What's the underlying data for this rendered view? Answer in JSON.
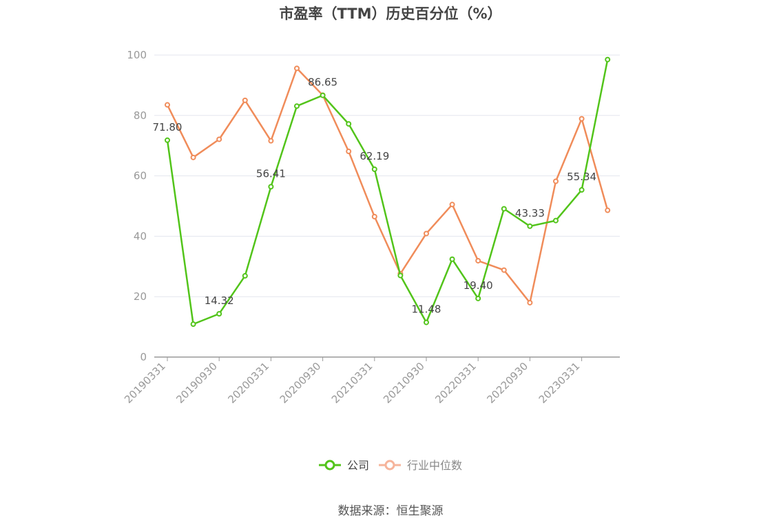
{
  "chart_data": {
    "type": "line",
    "title": "市盈率（TTM）历史百分位（%）",
    "source": "数据来源：恒生聚源",
    "ylim": [
      0,
      100
    ],
    "yticks": [
      0,
      20,
      40,
      60,
      80,
      100
    ],
    "grid": true,
    "legend_position": "bottom",
    "x": [
      "20190331",
      "20190630",
      "20190930",
      "20191231",
      "20200331",
      "20200630",
      "20200930",
      "20201231",
      "20210331",
      "20210630",
      "20210930",
      "20211231",
      "20220331",
      "20220630",
      "20220930",
      "20221231",
      "20230331",
      "20230630"
    ],
    "x_tick_labels": [
      "20190331",
      "20190930",
      "20200331",
      "20200930",
      "20210331",
      "20210930",
      "20220331",
      "20220930",
      "20230331"
    ],
    "series": [
      {
        "name": "公司",
        "color": "#52c41a",
        "values": [
          71.8,
          10.9,
          14.32,
          26.9,
          56.41,
          83.1,
          86.65,
          77.2,
          62.19,
          27.0,
          11.48,
          32.4,
          19.4,
          49.1,
          43.33,
          45.2,
          55.34,
          98.5
        ],
        "labels": [
          "71.80",
          "",
          "14.32",
          "",
          "56.41",
          "",
          "86.65",
          "",
          "62.19",
          "",
          "11.48",
          "",
          "19.40",
          "",
          "43.33",
          "",
          "55.34",
          ""
        ]
      },
      {
        "name": "行业中位数",
        "color": "#f08c5a",
        "values": [
          83.5,
          66.1,
          72.1,
          85.0,
          71.6,
          95.6,
          86.7,
          68.1,
          46.5,
          27.6,
          40.9,
          50.5,
          31.9,
          28.8,
          18.0,
          58.2,
          78.9,
          48.6
        ]
      }
    ]
  }
}
